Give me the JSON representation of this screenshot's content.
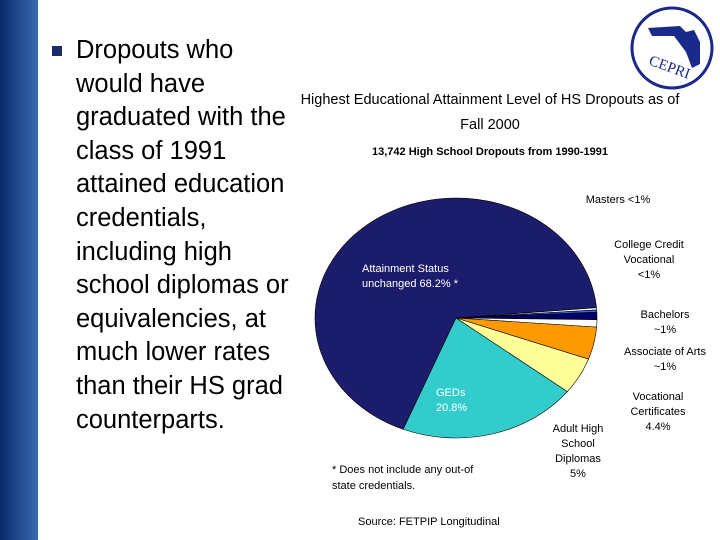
{
  "bullet": "Dropouts who would have graduated with the class of 1991 attained education credentials, including high school diplomas or equivalencies, at much lower rates than their HS grad counterparts.",
  "logo": "CEPRI",
  "chart_data": {
    "type": "pie",
    "title": "Highest Educational Attainment Level of HS Dropouts as of Fall 2000",
    "subtitle": "13,742 High School Dropouts from 1990-1991",
    "categories": [
      "Attainment Status unchanged",
      "Masters",
      "College Credit Vocational",
      "Bachelors",
      "Associate of Arts",
      "Vocational Certificates",
      "Adult High School Diplomas",
      "GEDs"
    ],
    "values": [
      68.2,
      0.3,
      0.3,
      1,
      1,
      4.4,
      5,
      20.8
    ],
    "value_labels": [
      "68.2% *",
      "<1%",
      "<1%",
      "~1%",
      "~1%",
      "4.4%",
      "5%",
      "20.8%"
    ],
    "colors": [
      "#1c1c6c",
      "#ffffff",
      "#3366ff",
      "#000066",
      "#ffffff",
      "#ff9900",
      "#ffff99",
      "#33cccc"
    ],
    "annotation": "* Does not include any out-of state credentials.",
    "source": "Source: FETPIP Longitudinal"
  }
}
